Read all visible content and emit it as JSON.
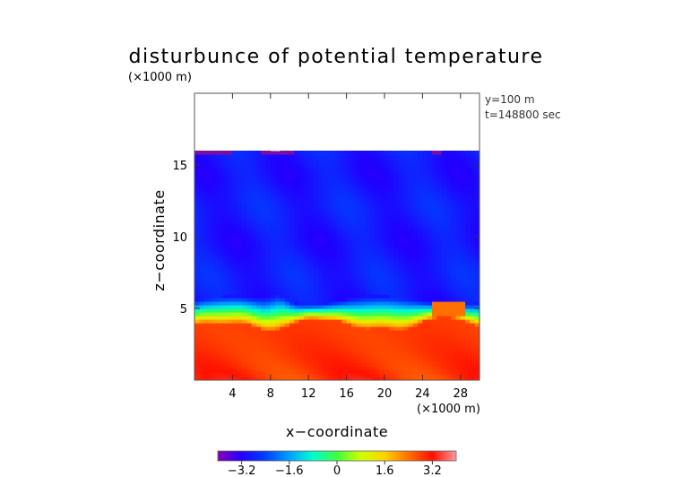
{
  "chart_data": {
    "type": "heatmap",
    "title": "disturbunce of potential temperature",
    "ylabel": "z−coordinate",
    "xlabel": "x−coordinate",
    "y_unit": "(×1000 m)",
    "x_unit": "(×1000 m)",
    "annotations": [
      "y=100 m",
      "t=148800 sec"
    ],
    "xlim": [
      0,
      30
    ],
    "ylim": [
      0,
      20
    ],
    "x_ticks": [
      4,
      8,
      12,
      16,
      20,
      24,
      28
    ],
    "y_ticks": [
      5,
      10,
      15
    ],
    "field_top_km": 16,
    "regions": [
      {
        "z_range": [
          0,
          4
        ],
        "value_range": [
          2.6,
          3.2
        ],
        "description": "warm lower layer"
      },
      {
        "z_range": [
          4,
          6
        ],
        "value_range": [
          -3.0,
          2.0
        ],
        "description": "transition layer with waves"
      },
      {
        "z_range": [
          6,
          16
        ],
        "value_range": [
          -3.2,
          -2.6
        ],
        "description": "cold upper layer"
      }
    ],
    "colorbar": {
      "min": -4.0,
      "max": 4.0,
      "ticks": [
        "−3.2",
        "−1.6",
        "0",
        "1.6",
        "3.2"
      ],
      "tick_values": [
        -3.2,
        -1.6,
        0,
        1.6,
        3.2
      ],
      "colors": [
        "#8a00b8",
        "#2000ff",
        "#0040ff",
        "#00a0ff",
        "#00ffd0",
        "#40ff40",
        "#d0ff00",
        "#ffd000",
        "#ff7000",
        "#ff1000",
        "#ff9a9a"
      ]
    }
  }
}
